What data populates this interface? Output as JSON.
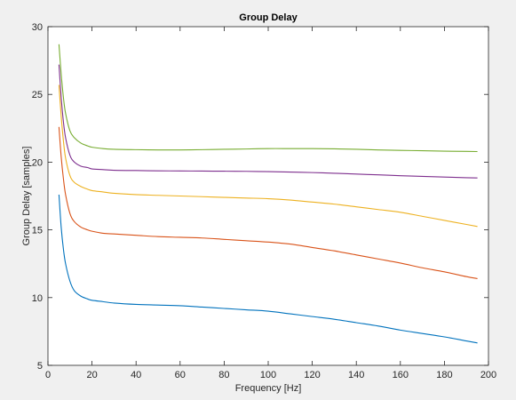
{
  "chart_data": {
    "type": "line",
    "title": "Group Delay",
    "xlabel": "Frequency [Hz]",
    "ylabel": "Group Delay [samples]",
    "xlim": [
      0,
      200
    ],
    "ylim": [
      5,
      30
    ],
    "xticks": [
      0,
      20,
      40,
      60,
      80,
      100,
      120,
      140,
      160,
      180,
      200
    ],
    "yticks": [
      5,
      10,
      15,
      20,
      25,
      30
    ],
    "grid": false,
    "legend": "none",
    "background": "#ffffff",
    "figure_background": "#f0f0f0",
    "x": [
      5,
      6,
      7,
      8,
      10,
      12,
      15,
      18,
      20,
      25,
      30,
      40,
      50,
      60,
      70,
      80,
      90,
      100,
      110,
      120,
      130,
      140,
      150,
      160,
      170,
      180,
      190,
      195
    ],
    "series": [
      {
        "color": "#0072bd",
        "values": [
          17.6,
          15.2,
          13.6,
          12.5,
          11.2,
          10.5,
          10.1,
          9.9,
          9.8,
          9.7,
          9.6,
          9.5,
          9.45,
          9.4,
          9.3,
          9.2,
          9.1,
          9.0,
          8.8,
          8.6,
          8.4,
          8.15,
          7.9,
          7.6,
          7.35,
          7.1,
          6.8,
          6.65
        ]
      },
      {
        "color": "#d95319",
        "values": [
          22.6,
          20.4,
          18.8,
          17.6,
          16.2,
          15.6,
          15.2,
          15.0,
          14.9,
          14.75,
          14.7,
          14.6,
          14.5,
          14.45,
          14.4,
          14.3,
          14.2,
          14.1,
          13.95,
          13.7,
          13.45,
          13.15,
          12.85,
          12.55,
          12.2,
          11.9,
          11.55,
          11.4
        ]
      },
      {
        "color": "#edb120",
        "values": [
          25.7,
          23.4,
          21.6,
          20.3,
          19.0,
          18.5,
          18.2,
          18.0,
          17.9,
          17.8,
          17.7,
          17.6,
          17.55,
          17.5,
          17.45,
          17.4,
          17.35,
          17.3,
          17.2,
          17.05,
          16.9,
          16.7,
          16.5,
          16.3,
          16.0,
          15.7,
          15.4,
          15.25
        ]
      },
      {
        "color": "#7e2f8e",
        "values": [
          27.2,
          24.8,
          23.0,
          21.8,
          20.5,
          20.0,
          19.7,
          19.6,
          19.5,
          19.45,
          19.4,
          19.38,
          19.36,
          19.35,
          19.34,
          19.33,
          19.32,
          19.3,
          19.27,
          19.23,
          19.18,
          19.12,
          19.06,
          19.0,
          18.95,
          18.9,
          18.85,
          18.83
        ]
      },
      {
        "color": "#77ac30",
        "values": [
          28.7,
          26.5,
          24.8,
          23.6,
          22.3,
          21.8,
          21.4,
          21.2,
          21.1,
          21.0,
          20.95,
          20.92,
          20.9,
          20.9,
          20.92,
          20.95,
          20.97,
          21.0,
          21.0,
          21.0,
          20.98,
          20.95,
          20.9,
          20.87,
          20.84,
          20.81,
          20.79,
          20.78
        ]
      }
    ]
  }
}
